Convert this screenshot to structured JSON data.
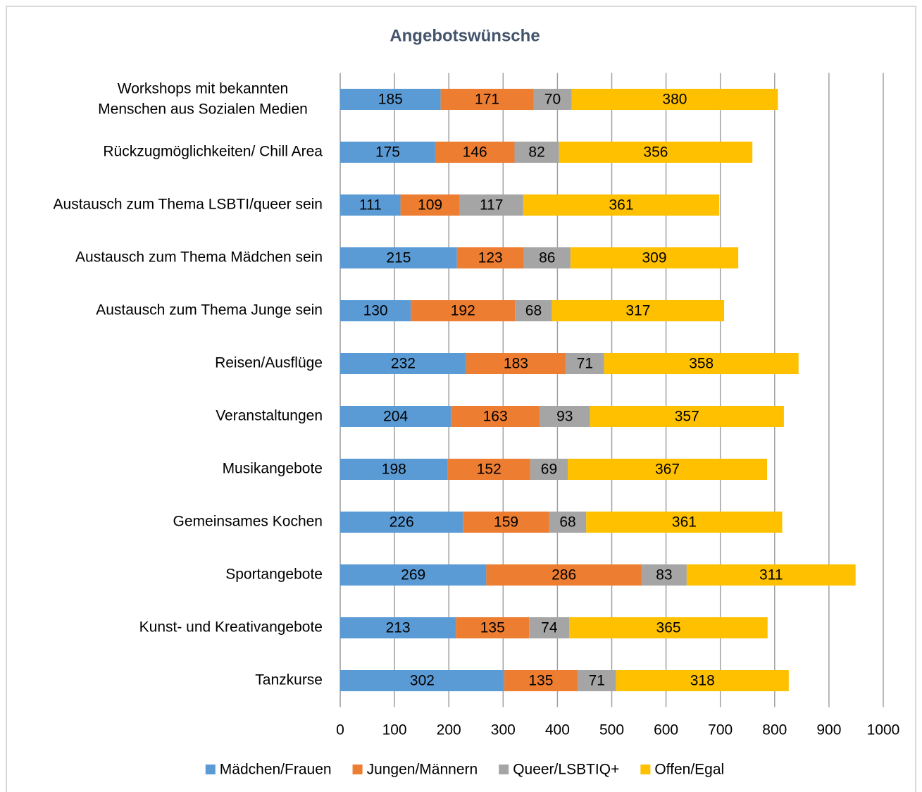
{
  "chart_data": {
    "type": "stacked_barh",
    "title": "Angebotswünsche",
    "categories": [
      "Workshops mit bekannten Menschen aus Sozialen Medien",
      "Rückzugmöglichkeiten/ Chill Area",
      "Austausch zum Thema LSBTI/queer sein",
      "Austausch zum Thema Mädchen sein",
      "Austausch zum Thema Junge sein",
      "Reisen/Ausflüge",
      "Veranstaltungen",
      "Musikangebote",
      "Gemeinsames Kochen",
      "Sportangebote",
      "Kunst- und Kreativangebote",
      "Tanzkurse"
    ],
    "series": [
      {
        "name": "Mädchen/Frauen",
        "color": "#5b9bd5",
        "values": [
          185,
          175,
          111,
          215,
          130,
          232,
          204,
          198,
          226,
          269,
          213,
          302
        ]
      },
      {
        "name": "Jungen/Männern",
        "color": "#ed7d31",
        "values": [
          171,
          146,
          109,
          123,
          192,
          183,
          163,
          152,
          159,
          286,
          135,
          135
        ]
      },
      {
        "name": "Queer/LSBTIQ+",
        "color": "#a5a5a5",
        "values": [
          70,
          82,
          117,
          86,
          68,
          71,
          93,
          69,
          68,
          83,
          74,
          71
        ]
      },
      {
        "name": "Offen/Egal",
        "color": "#ffc000",
        "values": [
          380,
          356,
          361,
          309,
          317,
          358,
          357,
          367,
          361,
          311,
          365,
          318
        ]
      }
    ],
    "xlim": [
      0,
      1000
    ],
    "xticks": [
      0,
      100,
      200,
      300,
      400,
      500,
      600,
      700,
      800,
      900,
      1000
    ],
    "grid": true,
    "legend": "bottom"
  }
}
